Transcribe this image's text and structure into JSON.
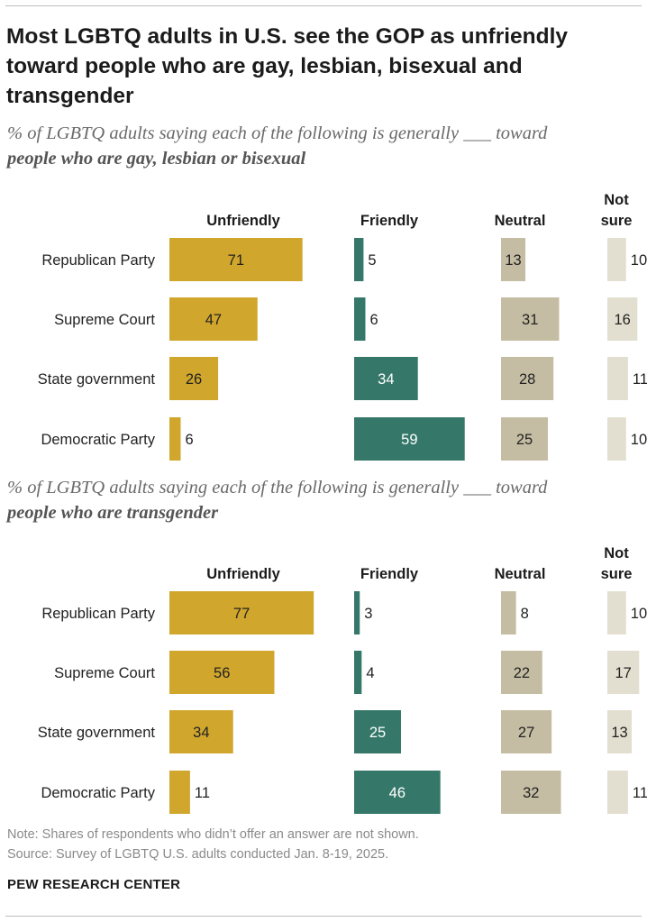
{
  "title": "Most LGBTQ adults in U.S. see the GOP as unfriendly toward people who are gay, lesbian, bisexual and transgender",
  "colors": {
    "unfriendly": "#d1a62c",
    "friendly": "#35786a",
    "neutral": "#c5bda3",
    "not_sure": "#e3dfd0"
  },
  "chart_data": [
    {
      "type": "bar",
      "subtitle_lead": "% of LGBTQ adults saying each of the following is generally ___ toward",
      "subtitle_bold": "people who are gay, lesbian or bisexual",
      "categories": [
        "Republican Party",
        "Supreme Court",
        "State government",
        "Democratic Party"
      ],
      "series": [
        {
          "name": "Unfriendly",
          "values": [
            71,
            47,
            26,
            6
          ]
        },
        {
          "name": "Friendly",
          "values": [
            5,
            6,
            34,
            59
          ]
        },
        {
          "name": "Neutral",
          "values": [
            13,
            31,
            28,
            25
          ]
        },
        {
          "name": "Not sure",
          "values": [
            10,
            16,
            11,
            10
          ]
        }
      ],
      "series_labels": [
        "Unfriendly",
        "Friendly",
        "Neutral",
        "Not sure"
      ],
      "ylim": [
        0,
        100
      ]
    },
    {
      "type": "bar",
      "subtitle_lead": "% of LGBTQ adults saying each of the following is generally ___ toward",
      "subtitle_bold": "people who are transgender",
      "categories": [
        "Republican Party",
        "Supreme Court",
        "State government",
        "Democratic Party"
      ],
      "series": [
        {
          "name": "Unfriendly",
          "values": [
            77,
            56,
            34,
            11
          ]
        },
        {
          "name": "Friendly",
          "values": [
            3,
            4,
            25,
            46
          ]
        },
        {
          "name": "Neutral",
          "values": [
            8,
            22,
            27,
            32
          ]
        },
        {
          "name": "Not sure",
          "values": [
            10,
            17,
            13,
            11
          ]
        }
      ],
      "series_labels": [
        "Unfriendly",
        "Friendly",
        "Neutral",
        "Not sure"
      ],
      "ylim": [
        0,
        100
      ]
    }
  ],
  "notes": {
    "note": "Note: Shares of respondents who didn’t offer an answer are not shown.",
    "source": "Source: Survey of LGBTQ U.S. adults conducted Jan. 8-19, 2025."
  },
  "brand": "PEW RESEARCH CENTER"
}
